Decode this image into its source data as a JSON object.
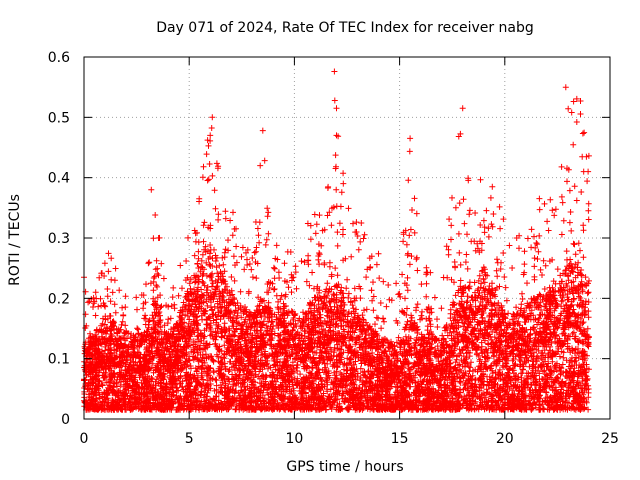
{
  "chart_data": {
    "type": "scatter",
    "title": "Day 071 of 2024, Rate Of TEC Index for receiver nabg",
    "xlabel": "GPS time / hours",
    "ylabel": "ROTI / TECUs",
    "xlim": [
      0,
      25
    ],
    "ylim": [
      0,
      0.6
    ],
    "xticks": [
      0,
      5,
      10,
      15,
      20,
      25
    ],
    "yticks": [
      0,
      0.1,
      0.2,
      0.3,
      0.4,
      0.5,
      0.6
    ],
    "xtick_labels": [
      "0",
      "5",
      "10",
      "15",
      "20",
      "25"
    ],
    "ytick_labels": [
      "0",
      "0.1",
      "0.2",
      "0.3",
      "0.4",
      "0.5",
      "0.6"
    ],
    "grid": true,
    "marker": "+",
    "color": "#ff0000",
    "envelope": {
      "x": [
        0.0,
        0.5,
        1.0,
        1.5,
        2.0,
        2.5,
        3.0,
        3.3,
        3.6,
        4.0,
        4.5,
        5.0,
        5.5,
        6.0,
        6.3,
        6.6,
        7.0,
        7.5,
        8.0,
        8.5,
        9.0,
        9.5,
        10.0,
        10.5,
        11.0,
        11.5,
        12.0,
        12.5,
        13.0,
        13.5,
        14.0,
        14.5,
        15.0,
        15.5,
        16.0,
        16.5,
        17.0,
        17.5,
        18.0,
        18.5,
        19.0,
        19.5,
        20.0,
        20.5,
        21.0,
        21.5,
        22.0,
        22.5,
        23.0,
        23.5,
        24.0
      ],
      "y_max": [
        0.23,
        0.2,
        0.29,
        0.25,
        0.22,
        0.21,
        0.24,
        0.38,
        0.3,
        0.2,
        0.26,
        0.32,
        0.38,
        0.5,
        0.45,
        0.38,
        0.36,
        0.3,
        0.28,
        0.47,
        0.3,
        0.32,
        0.3,
        0.28,
        0.44,
        0.34,
        0.57,
        0.4,
        0.34,
        0.3,
        0.28,
        0.22,
        0.24,
        0.46,
        0.28,
        0.25,
        0.2,
        0.4,
        0.51,
        0.36,
        0.45,
        0.38,
        0.33,
        0.3,
        0.34,
        0.37,
        0.4,
        0.34,
        0.55,
        0.53,
        0.45
      ],
      "y_typ": [
        0.07,
        0.08,
        0.1,
        0.09,
        0.08,
        0.08,
        0.08,
        0.12,
        0.1,
        0.08,
        0.1,
        0.13,
        0.16,
        0.18,
        0.16,
        0.14,
        0.12,
        0.11,
        0.1,
        0.12,
        0.1,
        0.11,
        0.1,
        0.1,
        0.13,
        0.12,
        0.14,
        0.12,
        0.1,
        0.09,
        0.08,
        0.07,
        0.07,
        0.1,
        0.08,
        0.08,
        0.07,
        0.11,
        0.14,
        0.12,
        0.15,
        0.12,
        0.1,
        0.1,
        0.11,
        0.12,
        0.13,
        0.12,
        0.16,
        0.15,
        0.13
      ]
    },
    "notable_points": [
      {
        "x": 11.9,
        "y": 0.576
      },
      {
        "x": 12.0,
        "y": 0.515
      },
      {
        "x": 22.9,
        "y": 0.55
      },
      {
        "x": 23.6,
        "y": 0.527
      },
      {
        "x": 18.0,
        "y": 0.515
      },
      {
        "x": 6.1,
        "y": 0.5
      },
      {
        "x": 8.5,
        "y": 0.478
      },
      {
        "x": 15.5,
        "y": 0.465
      },
      {
        "x": 12.0,
        "y": 0.47
      },
      {
        "x": 0.0,
        "y": 0.235
      },
      {
        "x": 3.2,
        "y": 0.38
      }
    ]
  }
}
